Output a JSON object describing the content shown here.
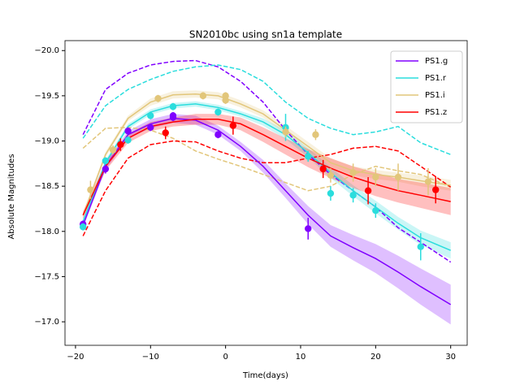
{
  "chart_data": {
    "type": "line",
    "title": "SN2010bc using sn1a template",
    "x_label": "Time(days)",
    "y_label": "Absolute Magnitudes",
    "xlim": [
      -21.4,
      32.2
    ],
    "ylim": [
      -16.74,
      -20.11
    ],
    "xticks": [
      {
        "value": -20,
        "label": "−20"
      },
      {
        "value": -10,
        "label": "−10"
      },
      0,
      10,
      20,
      30
    ],
    "yticks": [
      {
        "value": -20.0,
        "label": "−20.0"
      },
      {
        "value": -19.5,
        "label": "−19.5"
      },
      {
        "value": -19.0,
        "label": "−19.0"
      },
      {
        "value": -18.5,
        "label": "−18.5"
      },
      {
        "value": -18.0,
        "label": "−18.0"
      },
      {
        "value": -17.5,
        "label": "−17.5"
      },
      {
        "value": -17.0,
        "label": "−17.0"
      }
    ],
    "legend": "upper right",
    "x": [
      -19,
      -16,
      -13,
      -10,
      -7,
      -4,
      -1,
      2,
      5,
      8,
      11,
      14,
      17,
      20,
      23,
      26,
      30
    ],
    "series": [
      {
        "name": "PS1.g",
        "color": "#8000ff",
        "values": [
          -18.07,
          -18.72,
          -19.07,
          -19.19,
          -19.25,
          -19.23,
          -19.12,
          -18.94,
          -18.72,
          -18.45,
          -18.18,
          -17.95,
          -17.82,
          -17.7,
          -17.55,
          -17.39,
          -17.19
        ],
        "band": [
          0.03,
          0.04,
          0.04,
          0.05,
          0.05,
          0.05,
          0.05,
          0.05,
          0.07,
          0.08,
          0.1,
          0.12,
          0.14,
          0.16,
          0.18,
          0.2,
          0.22
        ],
        "dashed": [
          -19.07,
          -19.57,
          -19.75,
          -19.84,
          -19.88,
          -19.89,
          -19.82,
          -19.66,
          -19.43,
          -19.12,
          -18.85,
          -18.63,
          -18.45,
          -18.27,
          -18.04,
          -17.88,
          -17.66
        ],
        "points": {
          "x": [
            -19,
            -16,
            -13,
            -10,
            -7,
            -7,
            -1,
            11
          ],
          "values": [
            -18.08,
            -18.69,
            -19.11,
            -19.15,
            -19.26,
            -19.28,
            -19.07,
            -18.03
          ],
          "errors": [
            0.04,
            0.05,
            0.04,
            0.04,
            0.04,
            0.04,
            0.04,
            0.12
          ]
        }
      },
      {
        "name": "PS1.r",
        "color": "#2adddd",
        "values": [
          -18.11,
          -18.76,
          -19.16,
          -19.32,
          -19.39,
          -19.41,
          -19.37,
          -19.3,
          -19.21,
          -19.07,
          -18.87,
          -18.65,
          -18.45,
          -18.27,
          -18.09,
          -17.93,
          -17.79
        ],
        "band": [
          0.03,
          0.03,
          0.03,
          0.03,
          0.03,
          0.03,
          0.03,
          0.03,
          0.04,
          0.05,
          0.05,
          0.06,
          0.06,
          0.07,
          0.07,
          0.08,
          0.09
        ],
        "dashed": [
          -19.03,
          -19.39,
          -19.57,
          -19.68,
          -19.77,
          -19.82,
          -19.84,
          -19.79,
          -19.66,
          -19.43,
          -19.25,
          -19.14,
          -19.07,
          -19.1,
          -19.16,
          -18.98,
          -18.85
        ],
        "points": {
          "x": [
            -19,
            -16,
            -13,
            -10,
            -7,
            -1,
            8,
            11,
            14,
            17,
            20,
            26
          ],
          "values": [
            -18.05,
            -18.78,
            -19.01,
            -19.28,
            -19.38,
            -19.32,
            -19.15,
            -18.83,
            -18.42,
            -18.4,
            -18.23,
            -17.83
          ],
          "errors": [
            0.04,
            0.04,
            0.04,
            0.04,
            0.04,
            0.04,
            0.15,
            0.06,
            0.08,
            0.08,
            0.08,
            0.15
          ]
        }
      },
      {
        "name": "PS1.i",
        "color": "#e2c67a",
        "values": [
          -18.18,
          -18.85,
          -19.25,
          -19.43,
          -19.51,
          -19.52,
          -19.5,
          -19.41,
          -19.3,
          -19.12,
          -18.94,
          -18.76,
          -18.67,
          -18.63,
          -18.6,
          -18.56,
          -18.51
        ],
        "band": [
          0.03,
          0.03,
          0.03,
          0.04,
          0.04,
          0.04,
          0.04,
          0.04,
          0.04,
          0.05,
          0.05,
          0.05,
          0.05,
          0.05,
          0.05,
          0.06,
          0.06
        ],
        "dashed": [
          -18.92,
          -19.14,
          -19.15,
          -19.12,
          -19.03,
          -18.89,
          -18.8,
          -18.72,
          -18.63,
          -18.54,
          -18.45,
          -18.5,
          -18.63,
          -18.72,
          -18.67,
          -18.63,
          -18.49
        ],
        "points": {
          "x": [
            -18,
            -15,
            -9,
            -3,
            0,
            0,
            8,
            12,
            14,
            17,
            20,
            23,
            27
          ],
          "values": [
            -18.46,
            -18.9,
            -19.47,
            -19.5,
            -19.5,
            -19.45,
            -19.1,
            -19.07,
            -18.62,
            -18.65,
            -18.6,
            -18.6,
            -18.55
          ],
          "errors": [
            0.1,
            0.05,
            0.04,
            0.04,
            0.04,
            0.04,
            0.06,
            0.06,
            0.08,
            0.1,
            0.1,
            0.15,
            0.15
          ]
        }
      },
      {
        "name": "PS1.z",
        "color": "#ff0000",
        "values": [
          -18.18,
          -18.72,
          -19.03,
          -19.16,
          -19.21,
          -19.24,
          -19.24,
          -19.19,
          -19.07,
          -18.94,
          -18.81,
          -18.7,
          -18.6,
          -18.52,
          -18.45,
          -18.4,
          -18.33
        ],
        "band": [
          0.04,
          0.05,
          0.05,
          0.05,
          0.05,
          0.06,
          0.06,
          0.07,
          0.08,
          0.09,
          0.1,
          0.11,
          0.12,
          0.13,
          0.13,
          0.14,
          0.15
        ],
        "dashed": [
          -17.95,
          -18.45,
          -18.81,
          -18.96,
          -19.0,
          -18.99,
          -18.89,
          -18.81,
          -18.76,
          -18.76,
          -18.81,
          -18.85,
          -18.92,
          -18.94,
          -18.89,
          -18.72,
          -18.49
        ],
        "points": {
          "x": [
            -14,
            -8,
            1,
            13,
            19,
            28
          ],
          "values": [
            -18.96,
            -19.09,
            -19.17,
            -18.69,
            -18.45,
            -18.46
          ],
          "errors": [
            0.07,
            0.07,
            0.1,
            0.1,
            0.15,
            0.15
          ]
        }
      }
    ]
  }
}
